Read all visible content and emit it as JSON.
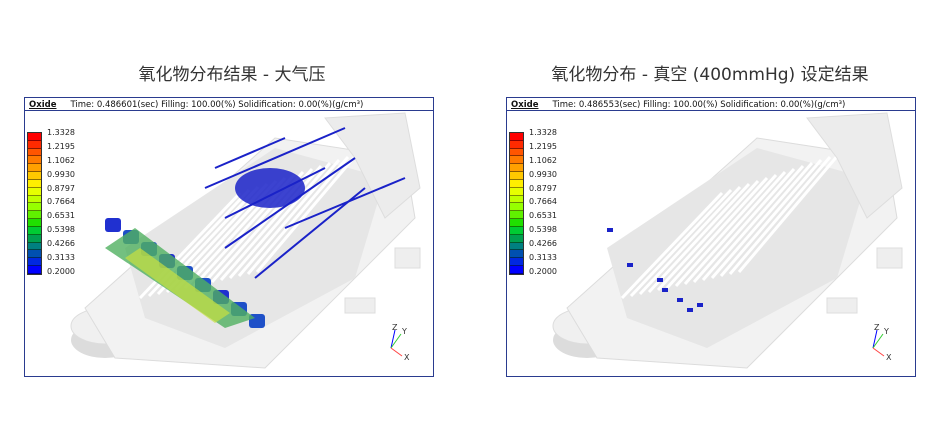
{
  "titles": {
    "left": "氧化物分布结果 - 大气压",
    "right": "氧化物分布 - 真空 (400mmHg) 设定结果"
  },
  "panels": [
    {
      "label": "Oxide",
      "status": "Time: 0.486601(sec)  Filling: 100.00(%)  Solidification: 0.00(%)(g/cm³)"
    },
    {
      "label": "Oxide",
      "status": "Time: 0.486553(sec)  Filling: 100.00(%)  Solidification: 0.00(%)(g/cm³)"
    }
  ],
  "legend": {
    "values": [
      "1.3328",
      "1.2195",
      "1.1062",
      "0.9930",
      "0.8797",
      "0.7664",
      "0.6531",
      "0.5398",
      "0.4266",
      "0.3133",
      "0.2000"
    ],
    "colors": [
      "#ff0000",
      "#ff2a00",
      "#ff5500",
      "#ff7a00",
      "#ffa000",
      "#ffc800",
      "#ffee00",
      "#e6ff00",
      "#c0ff00",
      "#96ff00",
      "#60f000",
      "#20e000",
      "#00cc33",
      "#00a050",
      "#008080",
      "#0050b0",
      "#0028e0",
      "#0000ff"
    ]
  },
  "axes": {
    "z": "Z",
    "y": "Y",
    "x": "X"
  },
  "colors": {
    "frame": "#2a3b8f",
    "oxide": "#1a22c8",
    "casting": "#e8e8e8"
  }
}
